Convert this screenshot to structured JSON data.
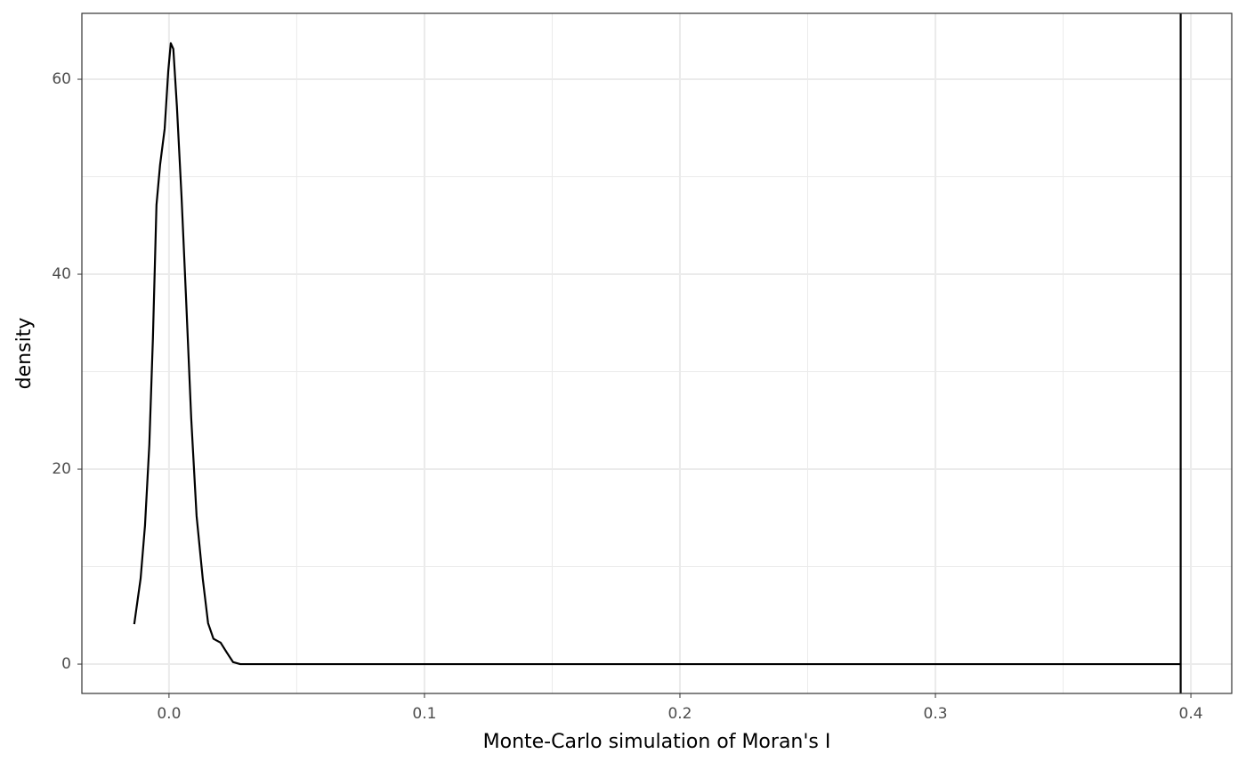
{
  "chart_data": {
    "type": "line",
    "xlabel": "Monte-Carlo simulation of Moran's I",
    "ylabel": "density",
    "x": [
      -0.0136,
      -0.0111,
      -0.0094,
      -0.0077,
      -0.0063,
      -0.0049,
      -0.0035,
      -0.0017,
      -0.0003,
      0.0007,
      0.0017,
      0.0031,
      0.0049,
      0.0066,
      0.0087,
      0.0108,
      0.0132,
      0.0153,
      0.0174,
      0.0202,
      0.0226,
      0.0251,
      0.0279,
      0.396
    ],
    "values": [
      4.1,
      8.8,
      14.2,
      22.5,
      33.4,
      47.1,
      51.2,
      54.9,
      60.8,
      63.7,
      63.1,
      57.2,
      48.0,
      38.0,
      25.2,
      15.2,
      8.8,
      4.2,
      2.6,
      2.2,
      1.2,
      0.2,
      0,
      0
    ],
    "color": "#000000",
    "vline": 0.396,
    "xlim": [
      -0.0341,
      0.416
    ],
    "ylim": [
      -3.01,
      66.76
    ],
    "xticks": [
      {
        "value": 0,
        "label": "0.0"
      },
      0.1,
      0.2,
      0.3,
      0.4
    ],
    "yticks": [
      0,
      20,
      40,
      60
    ],
    "x_minor_ticks": [
      0.05,
      0.15,
      0.25,
      0.35
    ],
    "y_minor_ticks": [
      10,
      30,
      50
    ],
    "grid": true
  }
}
